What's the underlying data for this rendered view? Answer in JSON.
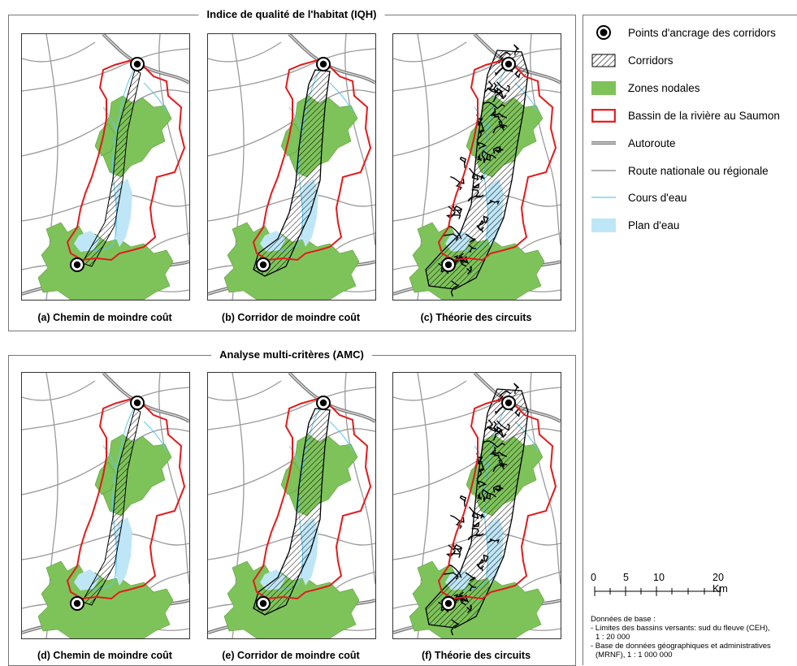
{
  "groups": [
    {
      "title": "Indice de qualité de l'habitat (IQH)",
      "panels": [
        {
          "caption": "(a) Chemin de moindre coût",
          "variant": "path"
        },
        {
          "caption": "(b) Corridor de moindre coût",
          "variant": "corridor"
        },
        {
          "caption": "(c) Théorie des circuits",
          "variant": "circuit"
        }
      ]
    },
    {
      "title": "Analyse multi-critères (AMC)",
      "panels": [
        {
          "caption": "(d) Chemin de moindre coût",
          "variant": "path"
        },
        {
          "caption": "(e) Corridor de moindre coût",
          "variant": "corridor"
        },
        {
          "caption": "(f) Théorie des circuits",
          "variant": "circuit"
        }
      ]
    }
  ],
  "legend": {
    "items": [
      {
        "icon": "anchor-point-icon",
        "label": "Points d'ancrage des corridors"
      },
      {
        "icon": "corridor-hatch-icon",
        "label": "Corridors"
      },
      {
        "icon": "nodal-zone-icon",
        "label": "Zones nodales"
      },
      {
        "icon": "watershed-boundary-icon",
        "label": "Bassin de la rivière au Saumon"
      },
      {
        "icon": "highway-icon",
        "label": "Autoroute"
      },
      {
        "icon": "road-icon",
        "label": "Route nationale ou régionale"
      },
      {
        "icon": "stream-icon",
        "label": "Cours d'eau"
      },
      {
        "icon": "water-body-icon",
        "label": "Plan d'eau"
      }
    ],
    "colors": {
      "nodal": "#7ec35a",
      "boundary": "#e31a1c",
      "water": "#bfe6f7",
      "stream": "#5fc8ef",
      "road": "#9a9a9a",
      "highway": "#7a7a7a"
    }
  },
  "scale": {
    "ticks": [
      "0",
      "5",
      "10",
      "20 Km"
    ]
  },
  "notes": {
    "heading": "Données de base :",
    "line1": "- Limites des bassins versants: sud du fleuve (CEH),",
    "line2": "  1 : 20 000",
    "line3": "- Base de données géographiques et administratives",
    "line4": "  (MRNF), 1 : 1 000 000"
  }
}
